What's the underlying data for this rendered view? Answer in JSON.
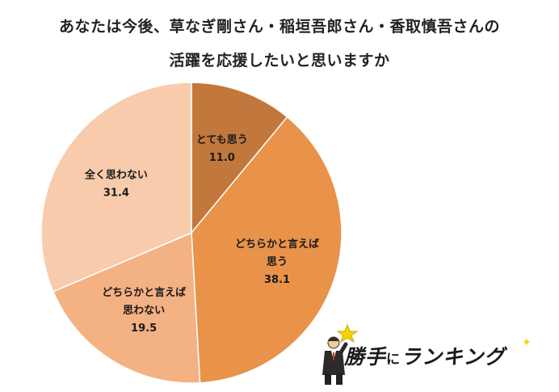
{
  "chart_data": {
    "type": "pie",
    "title": [
      "あなたは今後、草なぎ剛さん・稲垣吾郎さん・香取慎吾さんの",
      "活躍を応援したいと思いますか"
    ],
    "slices": [
      {
        "label": [
          "とても思う"
        ],
        "value": 11.0,
        "display": "11.0",
        "color": "#c2783c"
      },
      {
        "label": [
          "どちらかと言えば",
          "思う"
        ],
        "value": 38.1,
        "display": "38.1",
        "color": "#e8924a"
      },
      {
        "label": [
          "どちらかと言えば",
          "思わない"
        ],
        "value": 19.5,
        "display": "19.5",
        "color": "#f4b183"
      },
      {
        "label": [
          "全く思わない"
        ],
        "value": 31.4,
        "display": "31.4",
        "color": "#f8cbad"
      }
    ],
    "start_angle": "12 o'clock",
    "direction": "clockwise"
  },
  "logo": {
    "text_main_1": "勝手",
    "text_small": "に",
    "text_main_2": "ランキング"
  }
}
